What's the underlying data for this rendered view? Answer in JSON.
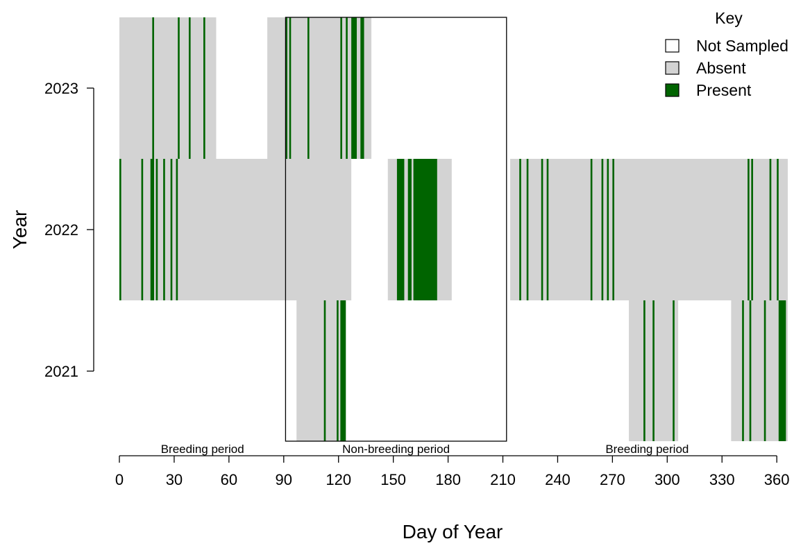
{
  "chart_data": {
    "type": "heatmap",
    "xlabel": "Day of Year",
    "ylabel": "Year",
    "xlim": [
      0,
      366
    ],
    "x_ticks": [
      0,
      30,
      60,
      90,
      120,
      150,
      180,
      210,
      240,
      270,
      300,
      330,
      360
    ],
    "years": [
      "2021",
      "2022",
      "2023"
    ],
    "colors": {
      "not_sampled": "#ffffff",
      "absent": "#d3d3d3",
      "present": "#006400"
    },
    "legend": {
      "title": "Key",
      "position": "top-right",
      "items": [
        {
          "key": "not_sampled",
          "label": "Not Sampled"
        },
        {
          "key": "absent",
          "label": "Absent"
        },
        {
          "key": "present",
          "label": "Present"
        }
      ]
    },
    "periods": [
      {
        "label": "Breeding period",
        "start": 0,
        "end": 91
      },
      {
        "label": "Non-breeding period",
        "start": 91,
        "end": 212
      },
      {
        "label": "Breeding period",
        "start": 212,
        "end": 366
      }
    ],
    "nonbreeding_box": {
      "start": 91,
      "end": 212
    },
    "rows": [
      {
        "year": "2023",
        "sampled": [
          [
            0,
            53
          ],
          [
            81,
            138
          ]
        ],
        "present_days": [
          [
            18,
            19
          ],
          [
            32,
            33
          ],
          [
            38,
            39
          ],
          [
            46,
            47
          ],
          [
            91,
            92
          ],
          [
            93,
            94
          ],
          [
            103,
            104
          ],
          [
            121,
            122
          ],
          [
            124,
            125
          ],
          [
            127,
            130
          ],
          [
            132,
            134
          ]
        ]
      },
      {
        "year": "2022",
        "sampled": [
          [
            0,
            127
          ],
          [
            147,
            182
          ],
          [
            214,
            366
          ]
        ],
        "present_days": [
          [
            0,
            1
          ],
          [
            12,
            13
          ],
          [
            17,
            19
          ],
          [
            20,
            21
          ],
          [
            24,
            25
          ],
          [
            28,
            29
          ],
          [
            31,
            32
          ],
          [
            152,
            156
          ],
          [
            158,
            160
          ],
          [
            161,
            174
          ],
          [
            219,
            220
          ],
          [
            223,
            224
          ],
          [
            231,
            232
          ],
          [
            234,
            235
          ],
          [
            258,
            259
          ],
          [
            264,
            265
          ],
          [
            267,
            268
          ],
          [
            270,
            271
          ],
          [
            344,
            345
          ],
          [
            346,
            347
          ],
          [
            356,
            357
          ],
          [
            360,
            361
          ]
        ]
      },
      {
        "year": "2021",
        "sampled": [
          [
            97,
            124
          ],
          [
            279,
            306
          ],
          [
            335,
            366
          ]
        ],
        "present_days": [
          [
            112,
            113
          ],
          [
            119,
            120
          ],
          [
            121,
            124
          ],
          [
            287,
            288
          ],
          [
            292,
            293
          ],
          [
            303,
            304
          ],
          [
            341,
            342
          ],
          [
            345,
            346
          ],
          [
            353,
            354
          ],
          [
            361,
            365
          ]
        ]
      }
    ]
  }
}
